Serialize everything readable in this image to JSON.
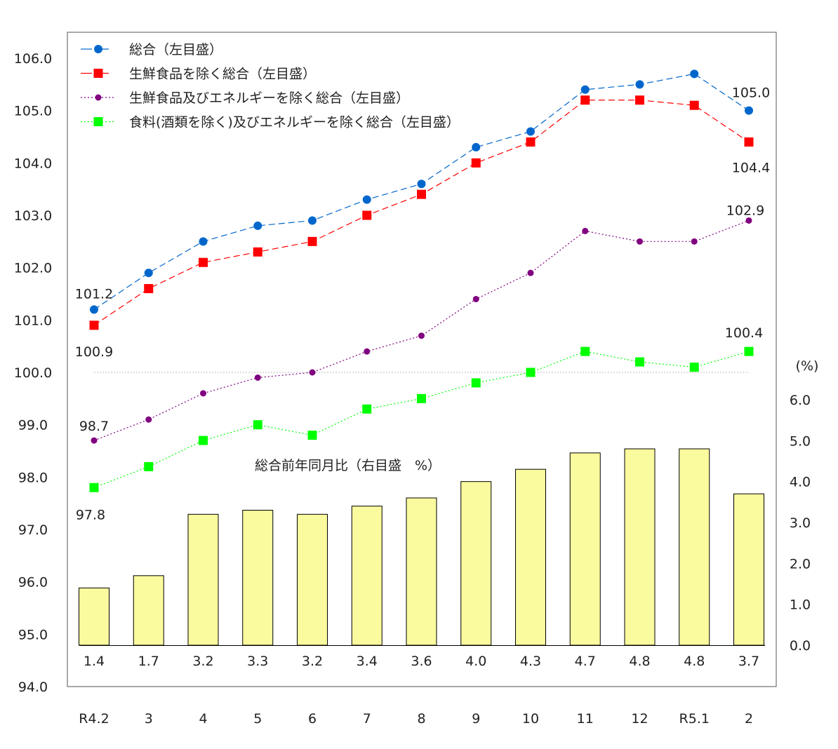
{
  "chart_data": {
    "type": "line+bar",
    "categories": [
      "R4.2",
      "3",
      "4",
      "5",
      "6",
      "7",
      "8",
      "9",
      "10",
      "11",
      "12",
      "R5.1",
      "2"
    ],
    "left_axis": {
      "range": [
        94.0,
        106.0
      ],
      "ticks": [
        "94.0",
        "95.0",
        "96.0",
        "97.0",
        "98.0",
        "99.0",
        "100.0",
        "101.0",
        "102.0",
        "103.0",
        "104.0",
        "105.0",
        "106.0"
      ]
    },
    "right_axis": {
      "unit_label": "(%)",
      "range": [
        0.0,
        6.0
      ],
      "ticks": [
        "0.0",
        "1.0",
        "2.0",
        "3.0",
        "4.0",
        "5.0",
        "6.0"
      ]
    },
    "reference_line": 100.0,
    "series": [
      {
        "name": "総合（左目盛）",
        "color": "#0066CC",
        "marker": "circle",
        "line": "dashed",
        "values": [
          101.2,
          101.9,
          102.5,
          102.8,
          102.9,
          103.3,
          103.6,
          104.3,
          104.6,
          105.4,
          105.5,
          105.7,
          105.0
        ]
      },
      {
        "name": "生鮮食品を除く総合（左目盛）",
        "color": "#FF0000",
        "marker": "square",
        "line": "dashed",
        "values": [
          100.9,
          101.6,
          102.1,
          102.3,
          102.5,
          103.0,
          103.4,
          104.0,
          104.4,
          105.2,
          105.2,
          105.1,
          104.4
        ]
      },
      {
        "name": "生鮮食品及びエネルギーを除く総合（左目盛）",
        "color": "#800080",
        "marker": "small-circle",
        "line": "dotted",
        "values": [
          98.7,
          99.1,
          99.6,
          99.9,
          100.0,
          100.4,
          100.7,
          101.4,
          101.9,
          102.7,
          102.5,
          102.5,
          102.9
        ]
      },
      {
        "name": "食料(酒類を除く)及びエネルギーを除く総合（左目盛）",
        "color": "#00FF00",
        "marker": "square",
        "line": "dotted",
        "values": [
          97.8,
          98.2,
          98.7,
          99.0,
          98.8,
          99.3,
          99.5,
          99.8,
          100.0,
          100.4,
          100.2,
          100.1,
          100.4
        ]
      }
    ],
    "bars": {
      "name": "総合前年同月比（右目盛　%）",
      "color": "#FAFA9E",
      "values": [
        1.4,
        1.7,
        3.2,
        3.3,
        3.2,
        3.4,
        3.6,
        4.0,
        4.3,
        4.7,
        4.8,
        4.8,
        3.7
      ],
      "labels": [
        "1.4",
        "1.7",
        "3.2",
        "3.3",
        "3.2",
        "3.4",
        "3.6",
        "4.0",
        "4.3",
        "4.7",
        "4.8",
        "4.8",
        "3.7"
      ]
    },
    "annotations": [
      {
        "series": 0,
        "index": 0,
        "text": "101.2"
      },
      {
        "series": 1,
        "index": 0,
        "text": "100.9"
      },
      {
        "series": 2,
        "index": 0,
        "text": "98.7"
      },
      {
        "series": 3,
        "index": 0,
        "text": "97.8"
      },
      {
        "series": 0,
        "index": 12,
        "text": "105.0"
      },
      {
        "series": 1,
        "index": 12,
        "text": "104.4"
      },
      {
        "series": 2,
        "index": 12,
        "text": "102.9"
      },
      {
        "series": 3,
        "index": 12,
        "text": "100.4"
      }
    ],
    "legend_position": "top-left",
    "grid": false
  }
}
